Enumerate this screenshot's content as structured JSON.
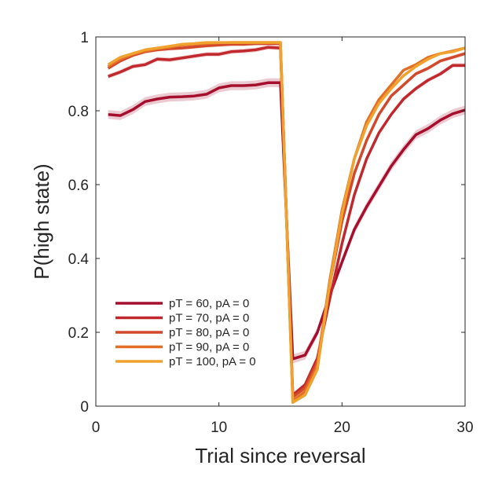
{
  "chart_data": {
    "type": "line",
    "title": "",
    "xlabel": "Trial since reversal",
    "ylabel": "P(high state)",
    "xlim": [
      0,
      30
    ],
    "ylim": [
      0,
      1
    ],
    "xticks": [
      0,
      10,
      20,
      30
    ],
    "yticks": [
      0,
      0.2,
      0.4,
      0.6,
      0.8,
      1
    ],
    "ytick_labels": [
      "0",
      "0.2",
      "0.4",
      "0.6",
      "0.8",
      "1"
    ],
    "grid": false,
    "shaded_error_band": true,
    "legend_position": "bottom-left",
    "x": [
      1,
      2,
      3,
      4,
      5,
      6,
      7,
      8,
      9,
      10,
      11,
      12,
      13,
      14,
      15,
      16,
      17,
      18,
      19,
      20,
      21,
      22,
      23,
      24,
      25,
      26,
      27,
      28,
      29,
      30
    ],
    "series": [
      {
        "name": "pT = 60, pA = 0",
        "color": "#a50f2d",
        "values": [
          0.79,
          0.787,
          0.803,
          0.825,
          0.832,
          0.837,
          0.838,
          0.84,
          0.845,
          0.862,
          0.868,
          0.868,
          0.87,
          0.876,
          0.876,
          0.128,
          0.138,
          0.2,
          0.3,
          0.39,
          0.478,
          0.54,
          0.595,
          0.65,
          0.695,
          0.735,
          0.752,
          0.775,
          0.792,
          0.802
        ]
      },
      {
        "name": "pT = 70, pA = 0",
        "color": "#c0282d",
        "values": [
          0.893,
          0.905,
          0.92,
          0.925,
          0.94,
          0.938,
          0.943,
          0.948,
          0.953,
          0.953,
          0.96,
          0.962,
          0.965,
          0.972,
          0.97,
          0.03,
          0.058,
          0.13,
          0.29,
          0.44,
          0.572,
          0.67,
          0.74,
          0.79,
          0.832,
          0.86,
          0.883,
          0.9,
          0.923,
          0.923
        ]
      },
      {
        "name": "pT = 80, pA = 0",
        "color": "#d2482a",
        "values": [
          0.915,
          0.935,
          0.95,
          0.96,
          0.965,
          0.968,
          0.97,
          0.973,
          0.976,
          0.978,
          0.98,
          0.98,
          0.982,
          0.982,
          0.982,
          0.025,
          0.05,
          0.12,
          0.33,
          0.5,
          0.63,
          0.72,
          0.79,
          0.84,
          0.87,
          0.9,
          0.915,
          0.935,
          0.945,
          0.955
        ]
      },
      {
        "name": "pT = 90, pA = 0",
        "color": "#e36f27",
        "values": [
          0.92,
          0.94,
          0.953,
          0.962,
          0.968,
          0.972,
          0.978,
          0.98,
          0.982,
          0.984,
          0.985,
          0.985,
          0.985,
          0.985,
          0.985,
          0.015,
          0.04,
          0.11,
          0.34,
          0.53,
          0.67,
          0.77,
          0.83,
          0.87,
          0.91,
          0.925,
          0.945,
          0.955,
          0.962,
          0.97
        ]
      },
      {
        "name": "pT = 100, pA = 0",
        "color": "#f0a22e",
        "values": [
          0.925,
          0.945,
          0.955,
          0.965,
          0.97,
          0.975,
          0.98,
          0.982,
          0.985,
          0.985,
          0.985,
          0.985,
          0.985,
          0.985,
          0.985,
          0.01,
          0.03,
          0.1,
          0.33,
          0.52,
          0.67,
          0.76,
          0.82,
          0.86,
          0.895,
          0.92,
          0.94,
          0.955,
          0.96,
          0.97
        ]
      }
    ]
  }
}
